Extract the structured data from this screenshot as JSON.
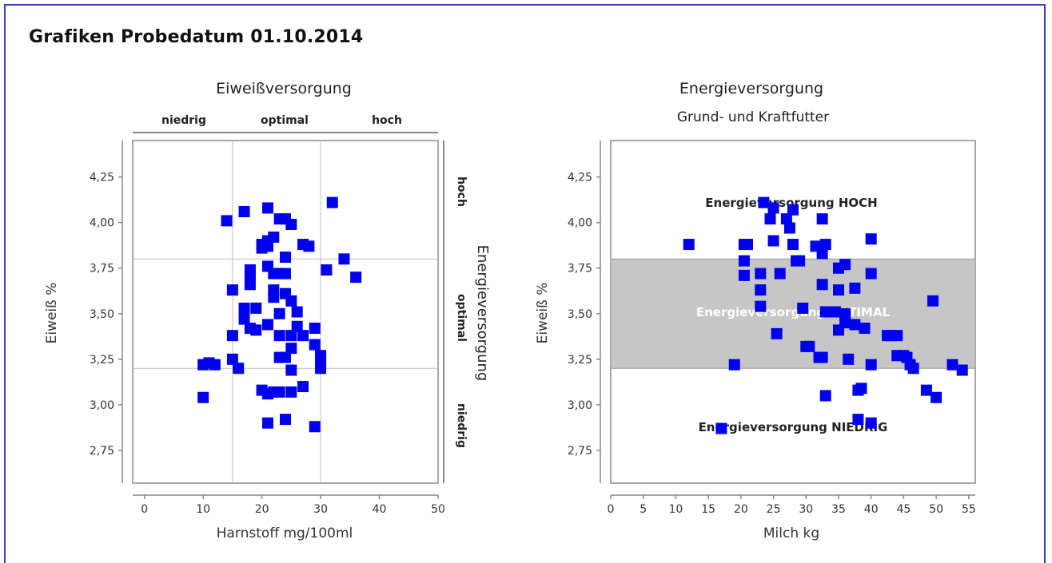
{
  "page": {
    "title": "Grafiken Probedatum 01.10.2014"
  },
  "chart_data": [
    {
      "type": "scatter",
      "title": "Eiweißversorgung",
      "xlabel": "Harnstoff mg/100ml",
      "ylabel": "Eiweiß %",
      "xlim": [
        -2,
        50
      ],
      "ylim": [
        2.57,
        4.45
      ],
      "xticks": [
        "0",
        "10",
        "20",
        "30",
        "40",
        "50"
      ],
      "yticks": [
        "2,75",
        "3,00",
        "3,25",
        "3,50",
        "3,75",
        "4,00",
        "4,25"
      ],
      "top_labels": [
        "niedrig",
        "optimal",
        "hoch"
      ],
      "right_title": "Energieversorgung",
      "right_labels": [
        "hoch",
        "optimal",
        "niedrig"
      ],
      "ref_lines": {
        "x": [
          15,
          30
        ],
        "y": [
          3.2,
          3.8
        ]
      },
      "marker_color": "#0000ee",
      "points": [
        [
          10,
          3.04
        ],
        [
          10,
          3.22
        ],
        [
          11,
          3.23
        ],
        [
          12,
          3.22
        ],
        [
          14,
          4.01
        ],
        [
          15,
          3.63
        ],
        [
          15,
          3.38
        ],
        [
          15,
          3.25
        ],
        [
          16,
          3.2
        ],
        [
          17,
          4.06
        ],
        [
          17,
          3.53
        ],
        [
          17,
          3.47
        ],
        [
          18,
          3.74
        ],
        [
          18,
          3.71
        ],
        [
          18,
          3.66
        ],
        [
          18,
          3.42
        ],
        [
          19,
          3.53
        ],
        [
          19,
          3.41
        ],
        [
          20,
          3.88
        ],
        [
          20,
          3.86
        ],
        [
          20,
          3.08
        ],
        [
          21,
          3.9
        ],
        [
          21,
          3.87
        ],
        [
          21,
          3.76
        ],
        [
          21,
          3.44
        ],
        [
          21,
          3.06
        ],
        [
          21,
          2.9
        ],
        [
          21,
          4.08
        ],
        [
          22,
          3.92
        ],
        [
          22,
          3.72
        ],
        [
          22,
          3.63
        ],
        [
          22,
          3.07
        ],
        [
          22,
          3.59
        ],
        [
          23,
          4.02
        ],
        [
          23,
          3.72
        ],
        [
          23,
          3.5
        ],
        [
          23,
          3.38
        ],
        [
          23,
          3.26
        ],
        [
          23,
          3.07
        ],
        [
          24,
          4.02
        ],
        [
          24,
          3.81
        ],
        [
          24,
          3.72
        ],
        [
          24,
          3.61
        ],
        [
          24,
          3.26
        ],
        [
          24,
          2.92
        ],
        [
          25,
          3.99
        ],
        [
          25,
          3.57
        ],
        [
          25,
          3.38
        ],
        [
          25,
          3.31
        ],
        [
          25,
          3.19
        ],
        [
          25,
          3.07
        ],
        [
          26,
          3.51
        ],
        [
          26,
          3.43
        ],
        [
          27,
          3.88
        ],
        [
          27,
          3.38
        ],
        [
          27,
          3.1
        ],
        [
          28,
          3.87
        ],
        [
          29,
          3.42
        ],
        [
          29,
          3.33
        ],
        [
          29,
          2.88
        ],
        [
          30,
          3.27
        ],
        [
          30,
          3.24
        ],
        [
          30,
          3.2
        ],
        [
          31,
          3.74
        ],
        [
          32,
          4.11
        ],
        [
          34,
          3.8
        ],
        [
          36,
          3.7
        ]
      ]
    },
    {
      "type": "scatter",
      "title": "Energieversorgung",
      "subtitle": "Grund- und Kraftfutter",
      "xlabel": "Milch kg",
      "ylabel": "Eiweiß %",
      "xlim": [
        0,
        56
      ],
      "ylim": [
        2.57,
        4.45
      ],
      "xticks": [
        "0",
        "5",
        "10",
        "15",
        "20",
        "25",
        "30",
        "35",
        "40",
        "45",
        "50",
        "55"
      ],
      "yticks": [
        "2,75",
        "3,00",
        "3,25",
        "3,50",
        "3,75",
        "4,00",
        "4,25"
      ],
      "band": {
        "y": [
          3.2,
          3.8
        ],
        "color": "#c6c6c6"
      },
      "annotations": {
        "high": "Energieversorgung HOCH",
        "optimal": "Energieversorgung OPTIMAL",
        "low": "Energieversorgung NIEDRIG"
      },
      "marker_color": "#0000ee",
      "points": [
        [
          12,
          3.88
        ],
        [
          17,
          2.87
        ],
        [
          19,
          3.22
        ],
        [
          20.5,
          3.88
        ],
        [
          20.5,
          3.79
        ],
        [
          20.5,
          3.71
        ],
        [
          21,
          3.88
        ],
        [
          23,
          3.72
        ],
        [
          23,
          3.63
        ],
        [
          23,
          3.54
        ],
        [
          23.5,
          4.11
        ],
        [
          24.5,
          4.02
        ],
        [
          25,
          4.08
        ],
        [
          25,
          3.9
        ],
        [
          25.5,
          3.39
        ],
        [
          26,
          3.72
        ],
        [
          27,
          4.02
        ],
        [
          27.5,
          3.97
        ],
        [
          28,
          4.07
        ],
        [
          28,
          3.88
        ],
        [
          28.5,
          3.79
        ],
        [
          29,
          3.79
        ],
        [
          29.5,
          3.53
        ],
        [
          30,
          3.32
        ],
        [
          30.5,
          3.32
        ],
        [
          31.5,
          3.87
        ],
        [
          32,
          3.26
        ],
        [
          32.5,
          3.66
        ],
        [
          32.5,
          3.26
        ],
        [
          32.5,
          3.83
        ],
        [
          33,
          3.88
        ],
        [
          33,
          3.05
        ],
        [
          32.5,
          4.02
        ],
        [
          33,
          3.51
        ],
        [
          34.5,
          3.51
        ],
        [
          35,
          3.75
        ],
        [
          35,
          3.63
        ],
        [
          35,
          3.41
        ],
        [
          36,
          3.77
        ],
        [
          36,
          3.5
        ],
        [
          36,
          3.45
        ],
        [
          36.5,
          3.25
        ],
        [
          37.5,
          3.64
        ],
        [
          37.5,
          3.44
        ],
        [
          38,
          3.08
        ],
        [
          38,
          2.92
        ],
        [
          38.5,
          3.09
        ],
        [
          39,
          3.42
        ],
        [
          40,
          3.91
        ],
        [
          40,
          3.72
        ],
        [
          40,
          3.22
        ],
        [
          40,
          2.9
        ],
        [
          42.5,
          3.38
        ],
        [
          43,
          3.38
        ],
        [
          44,
          3.38
        ],
        [
          44,
          3.27
        ],
        [
          45,
          3.27
        ],
        [
          45.5,
          3.26
        ],
        [
          46,
          3.22
        ],
        [
          46.5,
          3.2
        ],
        [
          48.5,
          3.08
        ],
        [
          49.5,
          3.57
        ],
        [
          50,
          3.04
        ],
        [
          52.5,
          3.22
        ],
        [
          54,
          3.19
        ]
      ]
    }
  ]
}
